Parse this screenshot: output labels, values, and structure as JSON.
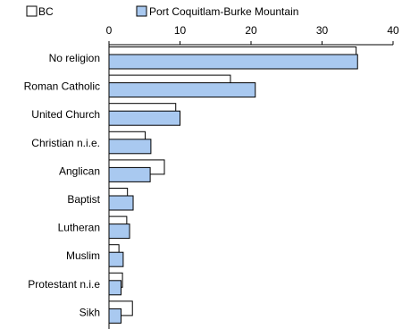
{
  "chart_data": {
    "type": "bar",
    "orientation": "horizontal",
    "title": "",
    "xlabel": "",
    "ylabel": "",
    "xlim": [
      0,
      40
    ],
    "xticks": [
      0,
      10,
      20,
      30,
      40
    ],
    "grid": false,
    "legend_position": "top",
    "categories": [
      "No religion",
      "Roman Catholic",
      "United Church",
      "Christian n.i.e.",
      "Anglican",
      "Baptist",
      "Lutheran",
      "Muslim",
      "Protestant n.i.e",
      "Sikh"
    ],
    "series": [
      {
        "name": "BC",
        "color": "#ffffff",
        "values": [
          34.8,
          17.1,
          9.4,
          5.1,
          7.8,
          2.6,
          2.5,
          1.4,
          1.9,
          3.3
        ]
      },
      {
        "name": "Port Coquitlam-Burke Mountain",
        "color": "#a9c9f0",
        "values": [
          35.0,
          20.6,
          10.0,
          5.9,
          5.8,
          3.4,
          2.9,
          2.0,
          1.7,
          1.7
        ]
      }
    ]
  }
}
